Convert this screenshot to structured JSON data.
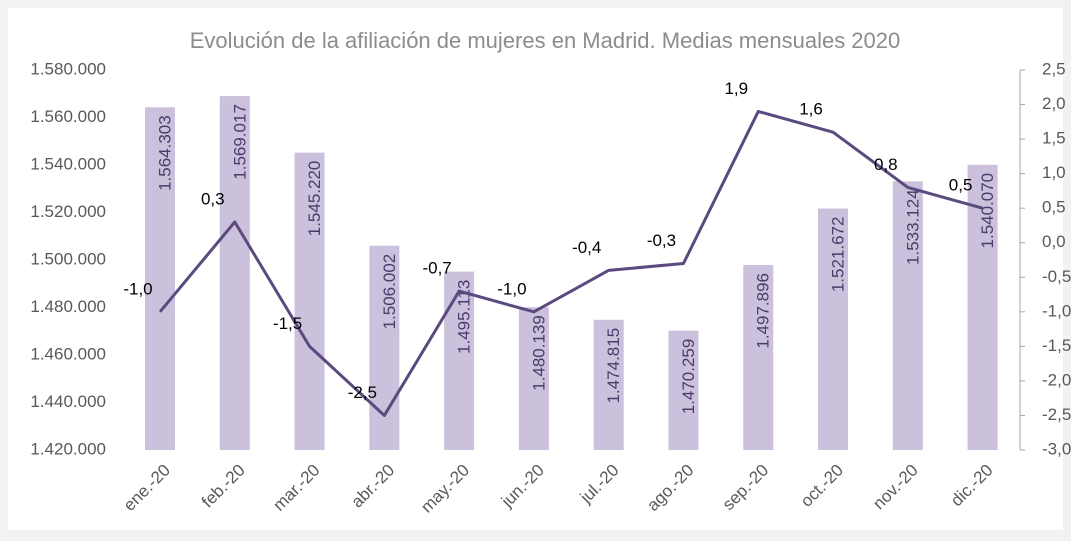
{
  "chart_data": {
    "type": "bar-line",
    "title": "Evolución de la afiliación de mujeres en Madrid. Medias mensuales 2020",
    "categories": [
      "ene.-20",
      "feb.-20",
      "mar.-20",
      "abr.-20",
      "may.-20",
      "jun.-20",
      "jul.-20",
      "ago.-20",
      "sep.-20",
      "oct.-20",
      "nov.-20",
      "dic.-20"
    ],
    "series": [
      {
        "type": "bar",
        "axis": "y",
        "color": "#cbc1dc",
        "values": [
          1564303,
          1569017,
          1545220,
          1506002,
          1495113,
          1480139,
          1474815,
          1470259,
          1497896,
          1521672,
          1533124,
          1540070
        ],
        "value_labels": [
          "1.564.303",
          "1.569.017",
          "1.545.220",
          "1.506.002",
          "1.495.113",
          "1.480.139",
          "1.474.815",
          "1.470.259",
          "1.497.896",
          "1.521.672",
          "1.533.124",
          "1.540.070"
        ]
      },
      {
        "type": "line",
        "axis": "y2",
        "color": "#5b4a7e",
        "values": [
          -1.0,
          0.3,
          -1.5,
          -2.5,
          -0.7,
          -1.0,
          -0.4,
          -0.3,
          1.9,
          1.6,
          0.8,
          0.5
        ],
        "value_labels": [
          "-1,0",
          "0,3",
          "-1,5",
          "-2,5",
          "-0,7",
          "-1,0",
          "-0,4",
          "-0,3",
          "1,9",
          "1,6",
          "0,8",
          "0,5"
        ]
      }
    ],
    "ylim": [
      1420000,
      1580000
    ],
    "yticks": [
      {
        "value": 1420000,
        "label": "1.420.000"
      },
      {
        "value": 1440000,
        "label": "1.440.000"
      },
      {
        "value": 1460000,
        "label": "1.460.000"
      },
      {
        "value": 1480000,
        "label": "1.480.000"
      },
      {
        "value": 1500000,
        "label": "1.500.000"
      },
      {
        "value": 1520000,
        "label": "1.520.000"
      },
      {
        "value": 1540000,
        "label": "1.540.000"
      },
      {
        "value": 1560000,
        "label": "1.560.000"
      },
      {
        "value": 1580000,
        "label": "1.580.000"
      }
    ],
    "y2lim": [
      -3.0,
      2.5
    ],
    "y2ticks": [
      {
        "value": -3.0,
        "label": "-3,0"
      },
      {
        "value": -2.5,
        "label": "-2,5"
      },
      {
        "value": -2.0,
        "label": "-2,0"
      },
      {
        "value": -1.5,
        "label": "-1,5"
      },
      {
        "value": -1.0,
        "label": "-1,0"
      },
      {
        "value": -0.5,
        "label": "-0,5"
      },
      {
        "value": 0.0,
        "label": "0,0"
      },
      {
        "value": 0.5,
        "label": "0,5"
      },
      {
        "value": 1.0,
        "label": "1,0"
      },
      {
        "value": 1.5,
        "label": "1,5"
      },
      {
        "value": 2.0,
        "label": "2,0"
      },
      {
        "value": 2.5,
        "label": "2,5"
      }
    ]
  }
}
